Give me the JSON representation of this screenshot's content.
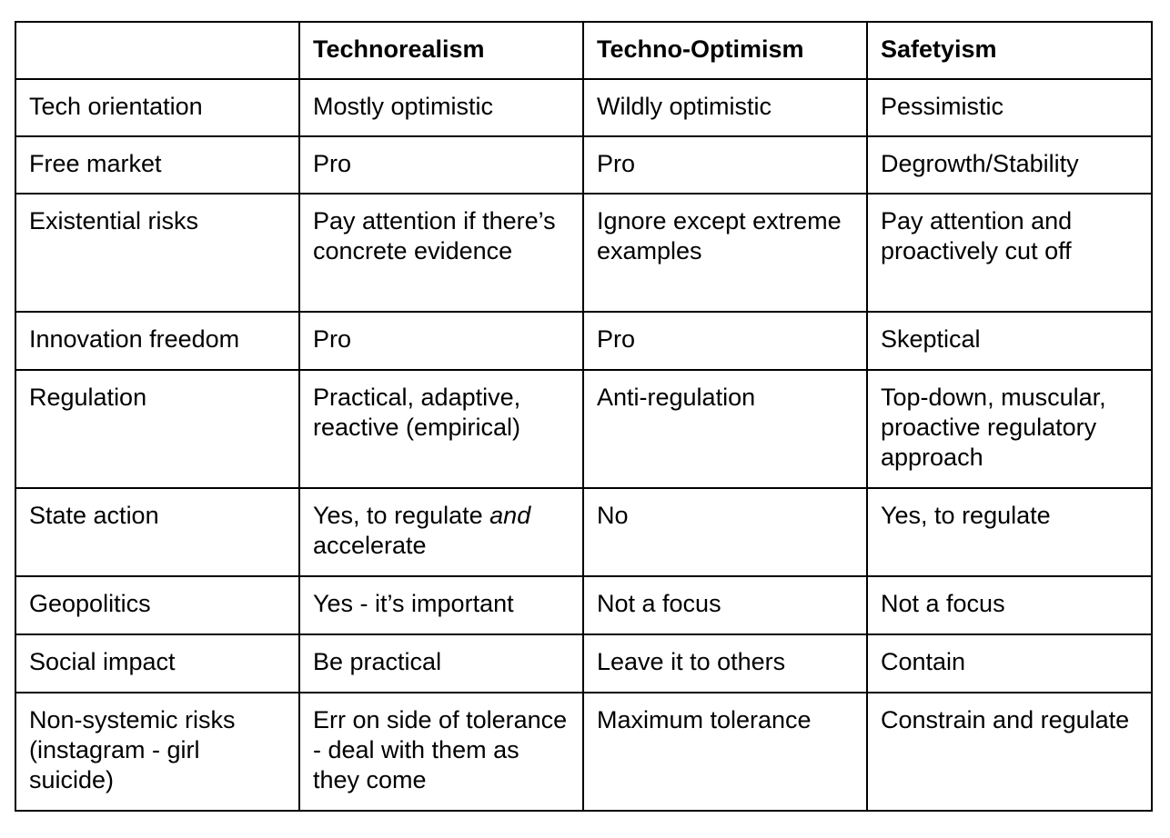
{
  "header": {
    "empty": "",
    "col1": "Technorealism",
    "col2": "Techno-Optimism",
    "col3": "Safetyism"
  },
  "rows": [
    {
      "label": "Tech orientation",
      "technorealism": "Mostly optimistic",
      "techno_optimism": "Wildly optimistic",
      "safetyism": "Pessimistic"
    },
    {
      "label": "Free market",
      "technorealism": "Pro",
      "techno_optimism": "Pro",
      "safetyism": "Degrowth/Stability"
    },
    {
      "label": "Existential risks",
      "technorealism": "Pay attention if there’s concrete evidence",
      "techno_optimism": "Ignore except extreme examples",
      "safetyism": "Pay attention and proactively cut off"
    },
    {
      "label": "Innovation freedom",
      "technorealism": "Pro",
      "techno_optimism": "Pro",
      "safetyism": "Skeptical"
    },
    {
      "label": "Regulation",
      "technorealism": "Practical, adaptive, reactive (empirical)",
      "techno_optimism": "Anti-regulation",
      "safetyism": "Top-down, muscular, proactive regulatory approach"
    },
    {
      "label": "State action",
      "technorealism_pre": "Yes, to regulate ",
      "technorealism_em": "and",
      "technorealism_post": " accelerate",
      "techno_optimism": "No",
      "safetyism": "Yes, to regulate"
    },
    {
      "label": "Geopolitics",
      "technorealism": "Yes - it’s important",
      "techno_optimism": "Not a focus",
      "safetyism": "Not a focus"
    },
    {
      "label": "Social impact",
      "technorealism": "Be practical",
      "techno_optimism": "Leave it to others",
      "safetyism": "Contain"
    },
    {
      "label": "Non-systemic risks (instagram - girl suicide)",
      "technorealism": "Err on side of tolerance - deal with them as they come",
      "techno_optimism": "Maximum tolerance",
      "safetyism": "Constrain and regulate"
    }
  ]
}
